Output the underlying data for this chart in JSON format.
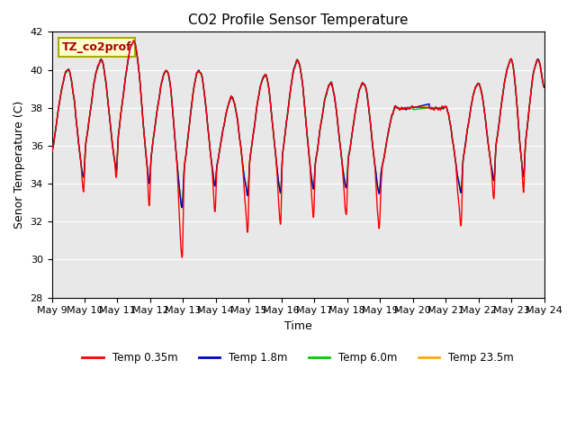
{
  "title": "CO2 Profile Sensor Temperature",
  "ylabel": "Senor Temperature (C)",
  "xlabel": "Time",
  "ylim": [
    28,
    42
  ],
  "yticks": [
    28,
    30,
    32,
    34,
    36,
    38,
    40,
    42
  ],
  "xtick_labels": [
    "May 9",
    "May 10",
    "May 11",
    "May 12",
    "May 13",
    "May 14",
    "May 15",
    "May 16",
    "May 17",
    "May 18",
    "May 19",
    "May 20",
    "May 21",
    "May 22",
    "May 23",
    "May 24"
  ],
  "series_colors": {
    "Temp 0.35m": "#ff0000",
    "Temp 1.8m": "#0000cc",
    "Temp 6.0m": "#00cc00",
    "Temp 23.5m": "#ffaa00"
  },
  "annotation_text": "TZ_co2prof",
  "annotation_color": "#aa0000",
  "annotation_bg": "#ffffcc",
  "annotation_border": "#aaaa00",
  "plot_bg": "#e8e8e8",
  "grid_color": "#ffffff",
  "title_fontsize": 11,
  "label_fontsize": 9,
  "tick_fontsize": 8,
  "linewidth": 1.0
}
